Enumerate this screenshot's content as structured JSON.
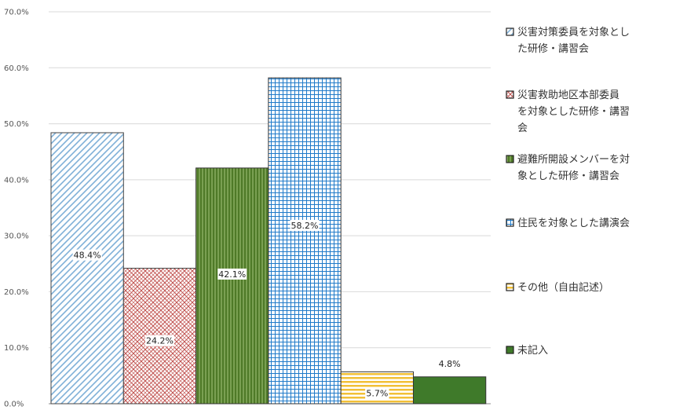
{
  "chart_data": {
    "type": "bar",
    "categories": [
      "災害対策委員を対象とした研修・講習会",
      "災害救助地区本部委員を対象とした研修・講習会",
      "避難所開設メンバーを対象とした研修・講習会",
      "住民を対象とした講演会",
      "その他（自由記述）",
      "未記入"
    ],
    "values": [
      48.4,
      24.2,
      42.1,
      58.2,
      5.7,
      4.8
    ],
    "value_labels": [
      "48.4%",
      "24.2%",
      "42.1%",
      "58.2%",
      "5.7%",
      "4.8%"
    ],
    "ylim": [
      0,
      70
    ],
    "yticks": [
      "0.0%",
      "10.0%",
      "20.0%",
      "30.0%",
      "40.0%",
      "50.0%",
      "60.0%",
      "70.0%"
    ],
    "grid": true,
    "legend_position": "right",
    "legend": [
      {
        "lines": [
          "災害対策委員を対象とし",
          "た研修・講習会"
        ]
      },
      {
        "lines": [
          "災害救助地区本部委員",
          "を対象とした研修・講習",
          "会"
        ]
      },
      {
        "lines": [
          "避難所開設メンバーを対",
          "象とした研修・講習会"
        ]
      },
      {
        "lines": [
          "住民を対象とした講演会"
        ]
      },
      {
        "lines": [
          "その他（自由記述）"
        ]
      },
      {
        "lines": [
          "未記入"
        ]
      }
    ],
    "colors": {
      "diag_blue": "#7fb0d8",
      "red_lattice": "#c0504d",
      "green": "#4f7a28",
      "blue_grid": "#1f7ac9",
      "yellow": "#f2c037",
      "dark_green": "#3f7a2a",
      "gridline": "#d9d9d9"
    }
  }
}
